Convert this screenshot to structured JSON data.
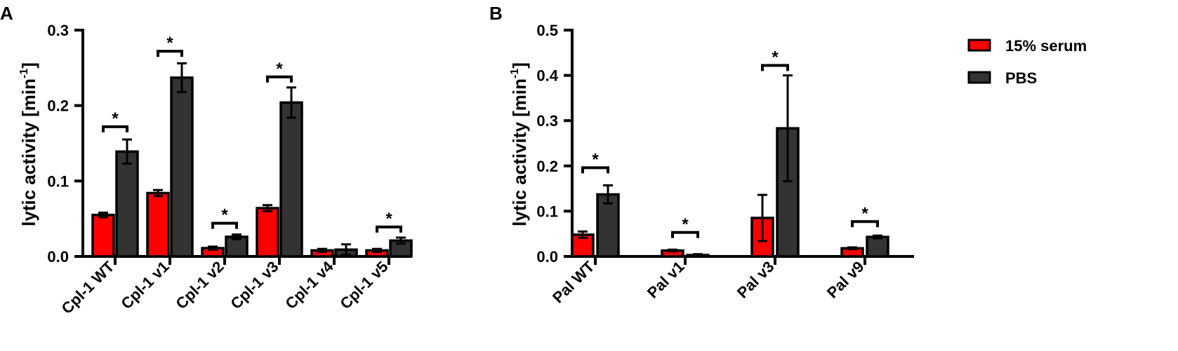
{
  "chart_data": [
    {
      "panel": "A",
      "type": "bar",
      "ylabel": "lytic activity [min",
      "ylabel_sup": "-1",
      "ylabel_end": "]",
      "ylim": [
        0,
        0.3
      ],
      "yticks": [
        0.0,
        0.1,
        0.2,
        0.3
      ],
      "ytick_labels": [
        "0.0",
        "0.1",
        "0.2",
        "0.3"
      ],
      "categories": [
        "Cpl-1 WT",
        "Cpl-1 v1",
        "Cpl-1 v2",
        "Cpl-1 v3",
        "Cpl-1 v4",
        "Cpl-1 v5"
      ],
      "series": [
        {
          "name": "15% serum",
          "color": "#ff0000",
          "values": [
            0.055,
            0.084,
            0.011,
            0.064,
            0.008,
            0.008
          ],
          "errors": [
            0.003,
            0.004,
            0.002,
            0.004,
            0.002,
            0.002
          ]
        },
        {
          "name": "PBS",
          "color": "#333333",
          "values": [
            0.139,
            0.237,
            0.026,
            0.204,
            0.009,
            0.021
          ],
          "errors": [
            0.016,
            0.019,
            0.003,
            0.02,
            0.007,
            0.004
          ]
        }
      ],
      "significance": [
        {
          "category": 0,
          "label": "*",
          "y": 0.172
        },
        {
          "category": 1,
          "label": "*",
          "y": 0.272
        },
        {
          "category": 2,
          "label": "*",
          "y": 0.044
        },
        {
          "category": 3,
          "label": "*",
          "y": 0.238
        },
        {
          "category": 5,
          "label": "*",
          "y": 0.039
        }
      ]
    },
    {
      "panel": "B",
      "type": "bar",
      "ylabel": "lytic activity [min",
      "ylabel_sup": "-1",
      "ylabel_end": "]",
      "ylim": [
        0,
        0.5
      ],
      "yticks": [
        0.0,
        0.1,
        0.2,
        0.3,
        0.4,
        0.5
      ],
      "ytick_labels": [
        "0.0",
        "0.1",
        "0.2",
        "0.3",
        "0.4",
        "0.5"
      ],
      "categories": [
        "Pal WT",
        "Pal v1",
        "Pal v3",
        "Pal v9"
      ],
      "series": [
        {
          "name": "15% serum",
          "color": "#ff0000",
          "values": [
            0.048,
            0.013,
            0.085,
            0.018
          ],
          "errors": [
            0.007,
            0.002,
            0.051,
            0.002
          ]
        },
        {
          "name": "PBS",
          "color": "#333333",
          "values": [
            0.137,
            0.003,
            0.283,
            0.043
          ],
          "errors": [
            0.02,
            0.002,
            0.117,
            0.003
          ]
        }
      ],
      "significance": [
        {
          "category": 0,
          "label": "*",
          "y": 0.196
        },
        {
          "category": 1,
          "label": "*",
          "y": 0.053
        },
        {
          "category": 2,
          "label": "*",
          "y": 0.422
        },
        {
          "category": 3,
          "label": "*",
          "y": 0.077
        }
      ]
    }
  ],
  "legend": {
    "position": "top-right",
    "items": [
      {
        "label": "15% serum",
        "color": "#ff0000"
      },
      {
        "label": "PBS",
        "color": "#333333"
      }
    ]
  }
}
